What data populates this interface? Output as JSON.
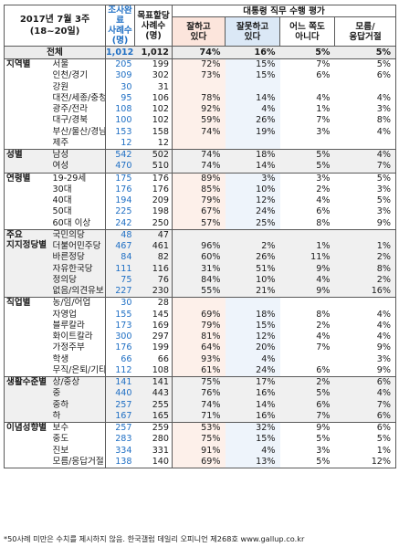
{
  "header": {
    "period_line1": "2017년 7월 3주",
    "period_line2": "(18~20일)",
    "col_completed_1": "조사완료",
    "col_completed_2": "사례수",
    "col_completed_3": "(명)",
    "col_target_1": "목표할당",
    "col_target_2": "사례수",
    "col_target_3": "(명)",
    "eval_title": "대통령 직무 수행 평가",
    "col_good_1": "잘하고",
    "col_good_2": "있다",
    "col_bad_1": "잘못하고",
    "col_bad_2": "있다",
    "col_neither_1": "어느 쪽도",
    "col_neither_2": "아니다",
    "col_dk_1": "모름/",
    "col_dk_2": "응답거절"
  },
  "total": {
    "label": "전체",
    "n1": "1,012",
    "n2": "1,012",
    "good": "74%",
    "bad": "16%",
    "neither": "5%",
    "dk": "5%"
  },
  "groups": [
    {
      "name": "지역별",
      "shade": false,
      "rows": [
        {
          "label": "서울",
          "n1": "205",
          "n2": "199",
          "good": "72%",
          "bad": "15%",
          "neither": "7%",
          "dk": "5%"
        },
        {
          "label": "인천/경기",
          "n1": "309",
          "n2": "302",
          "good": "73%",
          "bad": "15%",
          "neither": "6%",
          "dk": "6%"
        },
        {
          "label": "강원",
          "n1": "30",
          "n2": "31",
          "good": "",
          "bad": "",
          "neither": "",
          "dk": ""
        },
        {
          "label": "대전/세종/충청",
          "n1": "95",
          "n2": "106",
          "good": "78%",
          "bad": "14%",
          "neither": "4%",
          "dk": "4%"
        },
        {
          "label": "광주/전라",
          "n1": "108",
          "n2": "102",
          "good": "92%",
          "bad": "4%",
          "neither": "1%",
          "dk": "3%"
        },
        {
          "label": "대구/경북",
          "n1": "100",
          "n2": "102",
          "good": "59%",
          "bad": "26%",
          "neither": "7%",
          "dk": "8%"
        },
        {
          "label": "부산/울산/경남",
          "n1": "153",
          "n2": "158",
          "good": "74%",
          "bad": "19%",
          "neither": "3%",
          "dk": "4%"
        },
        {
          "label": "제주",
          "n1": "12",
          "n2": "12",
          "good": "",
          "bad": "",
          "neither": "",
          "dk": ""
        }
      ]
    },
    {
      "name": "성별",
      "shade": true,
      "rows": [
        {
          "label": "남성",
          "n1": "542",
          "n2": "502",
          "good": "74%",
          "bad": "18%",
          "neither": "5%",
          "dk": "4%"
        },
        {
          "label": "여성",
          "n1": "470",
          "n2": "510",
          "good": "74%",
          "bad": "14%",
          "neither": "5%",
          "dk": "7%"
        }
      ]
    },
    {
      "name": "연령별",
      "shade": false,
      "rows": [
        {
          "label": "19-29세",
          "n1": "175",
          "n2": "176",
          "good": "89%",
          "bad": "3%",
          "neither": "3%",
          "dk": "5%"
        },
        {
          "label": "30대",
          "n1": "176",
          "n2": "176",
          "good": "85%",
          "bad": "10%",
          "neither": "2%",
          "dk": "3%"
        },
        {
          "label": "40대",
          "n1": "194",
          "n2": "209",
          "good": "79%",
          "bad": "12%",
          "neither": "4%",
          "dk": "5%"
        },
        {
          "label": "50대",
          "n1": "225",
          "n2": "198",
          "good": "67%",
          "bad": "24%",
          "neither": "6%",
          "dk": "3%"
        },
        {
          "label": "60대 이상",
          "n1": "242",
          "n2": "250",
          "good": "57%",
          "bad": "25%",
          "neither": "8%",
          "dk": "9%"
        }
      ]
    },
    {
      "name": "주요\n지지정당별",
      "shade": true,
      "rows": [
        {
          "label": "국민의당",
          "n1": "48",
          "n2": "47",
          "good": "",
          "bad": "",
          "neither": "",
          "dk": ""
        },
        {
          "label": "더불어민주당",
          "n1": "467",
          "n2": "461",
          "good": "96%",
          "bad": "2%",
          "neither": "1%",
          "dk": "1%"
        },
        {
          "label": "바른정당",
          "n1": "84",
          "n2": "82",
          "good": "60%",
          "bad": "26%",
          "neither": "11%",
          "dk": "2%"
        },
        {
          "label": "자유한국당",
          "n1": "111",
          "n2": "116",
          "good": "31%",
          "bad": "51%",
          "neither": "9%",
          "dk": "8%"
        },
        {
          "label": "정의당",
          "n1": "75",
          "n2": "76",
          "good": "84%",
          "bad": "10%",
          "neither": "4%",
          "dk": "2%"
        },
        {
          "label": "없음/의견유보",
          "n1": "227",
          "n2": "230",
          "good": "55%",
          "bad": "21%",
          "neither": "9%",
          "dk": "16%"
        }
      ]
    },
    {
      "name": "직업별",
      "shade": false,
      "rows": [
        {
          "label": "농/임/어업",
          "n1": "30",
          "n2": "28",
          "good": "",
          "bad": "",
          "neither": "",
          "dk": ""
        },
        {
          "label": "자영업",
          "n1": "155",
          "n2": "145",
          "good": "69%",
          "bad": "18%",
          "neither": "8%",
          "dk": "4%"
        },
        {
          "label": "블루칼라",
          "n1": "173",
          "n2": "169",
          "good": "79%",
          "bad": "15%",
          "neither": "2%",
          "dk": "4%"
        },
        {
          "label": "화이트칼라",
          "n1": "300",
          "n2": "297",
          "good": "81%",
          "bad": "12%",
          "neither": "4%",
          "dk": "4%"
        },
        {
          "label": "가정주부",
          "n1": "176",
          "n2": "199",
          "good": "64%",
          "bad": "20%",
          "neither": "7%",
          "dk": "9%"
        },
        {
          "label": "학생",
          "n1": "66",
          "n2": "66",
          "good": "93%",
          "bad": "4%",
          "neither": "",
          "dk": "3%"
        },
        {
          "label": "무직/은퇴/기타",
          "n1": "112",
          "n2": "108",
          "good": "61%",
          "bad": "24%",
          "neither": "6%",
          "dk": "9%"
        }
      ]
    },
    {
      "name": "생활수준별",
      "shade": true,
      "rows": [
        {
          "label": "상/중상",
          "n1": "141",
          "n2": "141",
          "good": "75%",
          "bad": "17%",
          "neither": "2%",
          "dk": "6%"
        },
        {
          "label": "중",
          "n1": "440",
          "n2": "443",
          "good": "76%",
          "bad": "16%",
          "neither": "5%",
          "dk": "4%"
        },
        {
          "label": "중하",
          "n1": "257",
          "n2": "255",
          "good": "74%",
          "bad": "14%",
          "neither": "6%",
          "dk": "7%"
        },
        {
          "label": "하",
          "n1": "167",
          "n2": "165",
          "good": "71%",
          "bad": "16%",
          "neither": "7%",
          "dk": "6%"
        }
      ]
    },
    {
      "name": "이념성향별",
      "shade": false,
      "rows": [
        {
          "label": "보수",
          "n1": "257",
          "n2": "259",
          "good": "53%",
          "bad": "32%",
          "neither": "9%",
          "dk": "6%"
        },
        {
          "label": "중도",
          "n1": "283",
          "n2": "280",
          "good": "75%",
          "bad": "15%",
          "neither": "5%",
          "dk": "5%"
        },
        {
          "label": "진보",
          "n1": "334",
          "n2": "331",
          "good": "91%",
          "bad": "4%",
          "neither": "3%",
          "dk": "1%"
        },
        {
          "label": "모름/응답거절",
          "n1": "138",
          "n2": "140",
          "good": "69%",
          "bad": "13%",
          "neither": "5%",
          "dk": "12%"
        }
      ]
    }
  ],
  "footnote": "*50사례 미만은 수치를 제시하지 않음. 한국갤럽 데일리 오피니언 제268호 www.gallup.co.kr"
}
